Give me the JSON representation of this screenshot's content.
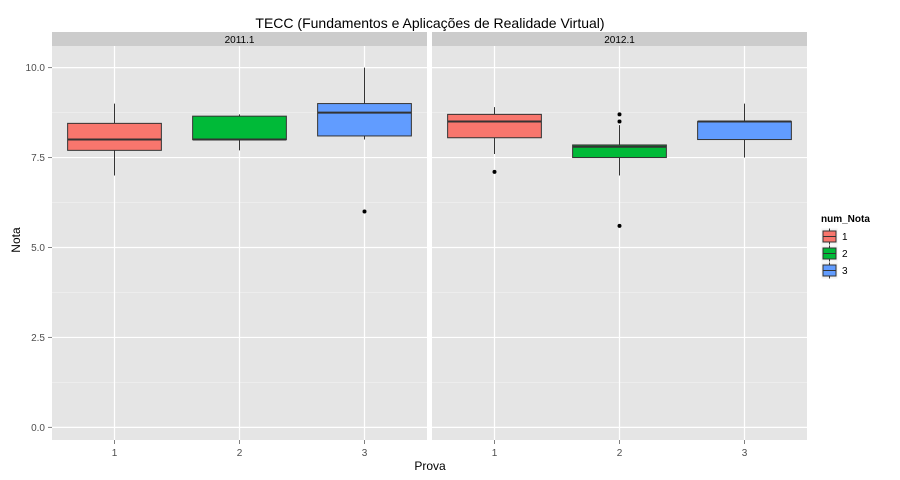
{
  "chart_data": {
    "type": "boxplot",
    "title": "TECC (Fundamentos e Aplicações de Realidade Virtual)",
    "xlabel": "Prova",
    "ylabel": "Nota",
    "ylim": [
      -0.35,
      10.6
    ],
    "yticks": [
      0.0,
      2.5,
      5.0,
      7.5,
      10.0
    ],
    "ytick_labels": [
      "0.0",
      "2.5",
      "5.0",
      "7.5",
      "10.0"
    ],
    "categories": [
      "1",
      "2",
      "3"
    ],
    "grid": true,
    "legend": {
      "title": "num_Nota",
      "position": "right",
      "entries": [
        {
          "label": "1",
          "color": "#F8766D"
        },
        {
          "label": "2",
          "color": "#00BA38"
        },
        {
          "label": "3",
          "color": "#619CFF"
        }
      ]
    },
    "panels": [
      {
        "label": "2011.1",
        "boxes": [
          {
            "x": "1",
            "fill": "#F8766D",
            "min": 7.0,
            "q1": 7.7,
            "median": 8.0,
            "q3": 8.45,
            "max": 9.0,
            "outliers": []
          },
          {
            "x": "2",
            "fill": "#00BA38",
            "min": 7.7,
            "q1": 8.0,
            "median": 8.0,
            "q3": 8.65,
            "max": 8.7,
            "outliers": []
          },
          {
            "x": "3",
            "fill": "#619CFF",
            "min": 8.0,
            "q1": 8.1,
            "median": 8.75,
            "q3": 9.0,
            "max": 10.0,
            "outliers": [
              6.0
            ]
          }
        ]
      },
      {
        "label": "2012.1",
        "boxes": [
          {
            "x": "1",
            "fill": "#F8766D",
            "min": 7.6,
            "q1": 8.05,
            "median": 8.5,
            "q3": 8.7,
            "max": 8.9,
            "outliers": [
              7.1
            ]
          },
          {
            "x": "2",
            "fill": "#00BA38",
            "min": 7.0,
            "q1": 7.5,
            "median": 7.8,
            "q3": 7.85,
            "max": 8.4,
            "outliers": [
              5.6,
              8.5,
              8.7
            ]
          },
          {
            "x": "3",
            "fill": "#619CFF",
            "min": 7.5,
            "q1": 8.0,
            "median": 8.5,
            "q3": 8.5,
            "max": 9.0,
            "outliers": []
          }
        ]
      }
    ]
  }
}
